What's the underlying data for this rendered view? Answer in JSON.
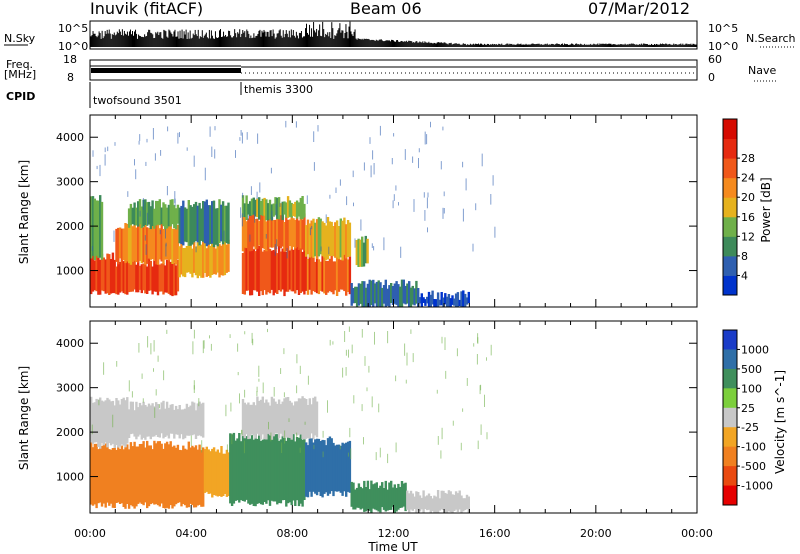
{
  "header": {
    "radar": "Inuvik (fitACF)",
    "beam": "Beam 06",
    "date": "07/Mar/2012"
  },
  "sky_panel": {
    "left_label": "N.Sky",
    "left_ticks": [
      "10^5",
      "10^0"
    ],
    "right_label": "N.Search",
    "right_ticks": [
      "10^5",
      "10^0"
    ]
  },
  "freq_panel": {
    "left_label_1": "Freq.",
    "left_label_2": "[MHz]",
    "left_ticks": [
      "18",
      "8"
    ],
    "right_label": "Nave",
    "right_ticks": [
      "60",
      "0"
    ]
  },
  "cpid": {
    "label": "CPID",
    "segments": [
      {
        "name": "twofsound 3501",
        "start_hour": 0
      },
      {
        "name": "themis 3300",
        "start_hour": 6
      }
    ]
  },
  "colors": {
    "power_scale": [
      "#0033cc",
      "#2e5fb0",
      "#3d8a5a",
      "#6fb04a",
      "#e6b21e",
      "#f58a1e",
      "#f0581a",
      "#e62a10",
      "#d60a00"
    ],
    "velocity_scale": [
      "#e60000",
      "#ea4a10",
      "#f08020",
      "#f2a524",
      "#c8c8c8",
      "#7ccf3c",
      "#3f8f5c",
      "#2f6fa8",
      "#1a3cc8"
    ]
  },
  "chart_data": [
    {
      "type": "heatmap",
      "title": "Power",
      "quantity": "Power [dB]",
      "ylabel": "Slant Range [km]",
      "xlabel": "Time UT",
      "xlim_hours": [
        0,
        24
      ],
      "ylim": [
        180,
        4500
      ],
      "x_ticks": [
        "00:00",
        "04:00",
        "08:00",
        "12:00",
        "16:00",
        "20:00",
        "00:00"
      ],
      "y_ticks": [
        1000,
        2000,
        3000,
        4000
      ],
      "colorbar_ticks": [
        4,
        8,
        12,
        16,
        20,
        24,
        28
      ],
      "regions": [
        {
          "t0": 0.0,
          "t1": 1.0,
          "r0": 500,
          "r1": 1300,
          "value": 28
        },
        {
          "t0": 0.0,
          "t1": 0.5,
          "r0": 1300,
          "r1": 2600,
          "value": 14
        },
        {
          "t0": 1.0,
          "t1": 3.5,
          "r0": 500,
          "r1": 1200,
          "value": 28
        },
        {
          "t0": 1.0,
          "t1": 3.5,
          "r0": 1200,
          "r1": 2000,
          "value": 22
        },
        {
          "t0": 1.5,
          "t1": 3.5,
          "r0": 2000,
          "r1": 2500,
          "value": 12
        },
        {
          "t0": 3.5,
          "t1": 5.5,
          "r0": 900,
          "r1": 1600,
          "value": 20
        },
        {
          "t0": 3.5,
          "t1": 5.5,
          "r0": 1600,
          "r1": 2500,
          "value": 10
        },
        {
          "t0": 6.0,
          "t1": 8.5,
          "r0": 500,
          "r1": 1500,
          "value": 28
        },
        {
          "t0": 6.0,
          "t1": 8.5,
          "r0": 1500,
          "r1": 2200,
          "value": 24
        },
        {
          "t0": 6.0,
          "t1": 8.5,
          "r0": 2200,
          "r1": 2600,
          "value": 14
        },
        {
          "t0": 8.5,
          "t1": 10.3,
          "r0": 500,
          "r1": 1300,
          "value": 26
        },
        {
          "t0": 8.5,
          "t1": 10.3,
          "r0": 1300,
          "r1": 2100,
          "value": 18
        },
        {
          "t0": 10.3,
          "t1": 13.0,
          "r0": 200,
          "r1": 700,
          "value": 8
        },
        {
          "t0": 10.5,
          "t1": 11.0,
          "r0": 1100,
          "r1": 1700,
          "value": 14
        },
        {
          "t0": 13.0,
          "t1": 15.0,
          "r0": 200,
          "r1": 450,
          "value": 4
        }
      ]
    },
    {
      "type": "heatmap",
      "title": "Velocity",
      "quantity": "Velocity [m s^-1]",
      "ylabel": "Slant Range [km]",
      "xlabel": "Time UT",
      "xlim_hours": [
        0,
        24
      ],
      "ylim": [
        180,
        4500
      ],
      "x_ticks": [
        "00:00",
        "04:00",
        "08:00",
        "12:00",
        "16:00",
        "20:00",
        "00:00"
      ],
      "y_ticks": [
        1000,
        2000,
        3000,
        4000
      ],
      "colorbar_ticks": [
        1000,
        500,
        100,
        25,
        -25,
        -100,
        -500,
        -1000
      ],
      "regions": [
        {
          "t0": 0.0,
          "t1": 4.5,
          "r0": 350,
          "r1": 1700,
          "value": -300
        },
        {
          "t0": 0.0,
          "t1": 1.5,
          "r0": 1700,
          "r1": 2700,
          "value": 0
        },
        {
          "t0": 1.5,
          "t1": 4.5,
          "r0": 1900,
          "r1": 2600,
          "value": 0
        },
        {
          "t0": 4.5,
          "t1": 5.8,
          "r0": 600,
          "r1": 1600,
          "value": -60
        },
        {
          "t0": 5.5,
          "t1": 8.5,
          "r0": 400,
          "r1": 1900,
          "value": 200
        },
        {
          "t0": 6.0,
          "t1": 9.0,
          "r0": 1900,
          "r1": 2700,
          "value": 0
        },
        {
          "t0": 8.5,
          "t1": 10.3,
          "r0": 600,
          "r1": 1800,
          "value": 800
        },
        {
          "t0": 10.3,
          "t1": 12.5,
          "r0": 250,
          "r1": 800,
          "value": 200
        },
        {
          "t0": 12.5,
          "t1": 15.0,
          "r0": 200,
          "r1": 600,
          "value": 0
        }
      ]
    }
  ],
  "time_axis_label": "Time UT"
}
